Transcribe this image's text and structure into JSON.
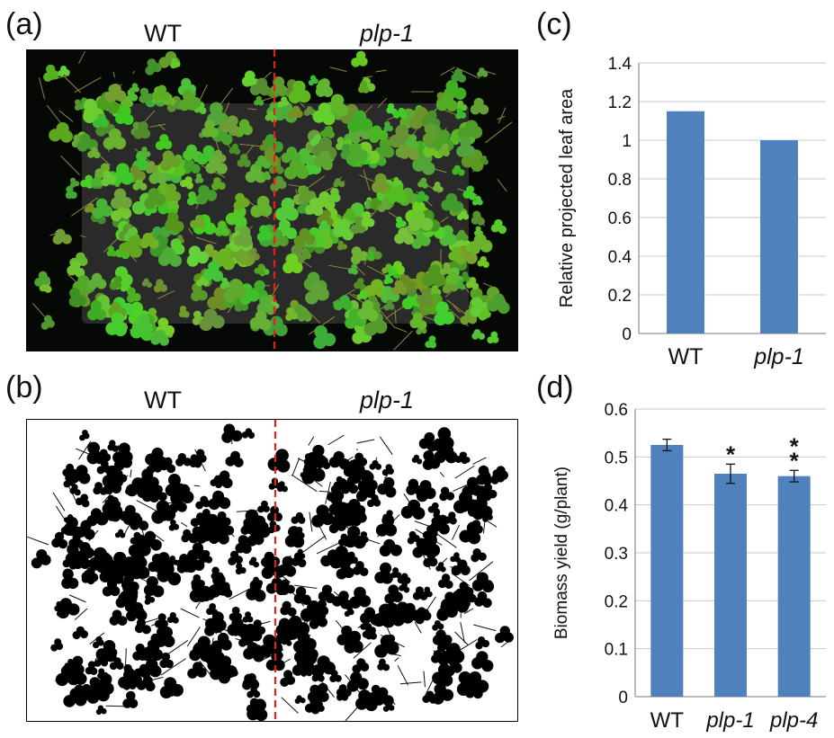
{
  "panels": {
    "a": {
      "label": "(a)",
      "left_group": "WT",
      "right_group": "plp-1"
    },
    "b": {
      "label": "(b)",
      "left_group": "WT",
      "right_group": "plp-1"
    },
    "c": {
      "label": "(c)"
    },
    "d": {
      "label": "(d)"
    }
  },
  "colors": {
    "bar": "#4f81bd",
    "divider": "#e8201b",
    "grid": "#c8c8c8"
  },
  "chart_data": [
    {
      "panel": "c",
      "type": "bar",
      "categories": [
        "WT",
        "plp-1"
      ],
      "values": [
        1.15,
        1.0
      ],
      "title": "",
      "xlabel": "",
      "ylabel": "Relative  projected leaf area",
      "ylim": [
        0,
        1.4
      ],
      "yticks": [
        "0",
        "0.2",
        "0.4",
        "0.6",
        "0.8",
        "1",
        "1.2",
        "1.4"
      ],
      "grid": true
    },
    {
      "panel": "d",
      "type": "bar",
      "categories": [
        "WT",
        "plp-1",
        "plp-4"
      ],
      "values": [
        0.525,
        0.465,
        0.46
      ],
      "errors": [
        0.012,
        0.02,
        0.012
      ],
      "annotations": [
        "",
        "*",
        "**"
      ],
      "title": "",
      "xlabel": "",
      "ylabel": "Biomass yield (g/plant)",
      "ylim": [
        0,
        0.6
      ],
      "yticks": [
        "0",
        "0.1",
        "0.2",
        "0.3",
        "0.4",
        "0.5",
        "0.6"
      ],
      "grid": true
    }
  ]
}
